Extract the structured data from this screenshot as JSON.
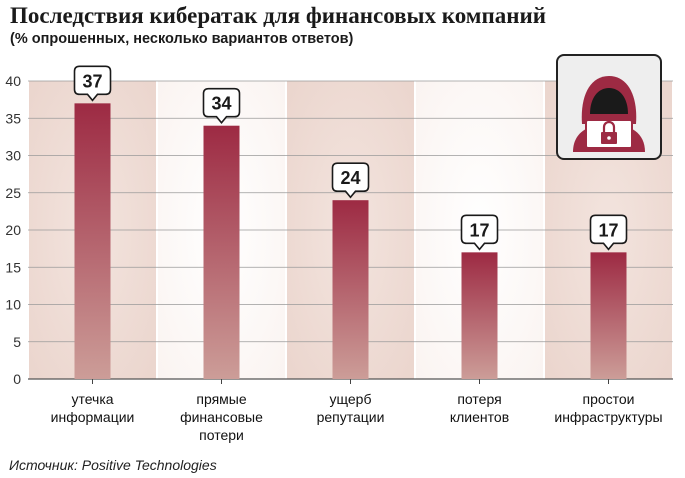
{
  "title": "Последствия кибератак для финансовых компаний",
  "subtitle": "(% опрошенных, несколько вариантов ответов)",
  "source": "Источник: Positive Technologies",
  "icon": "hacker-icon",
  "colors": {
    "bar_top": "#9d2a43",
    "bar_bottom": "#cc9d98",
    "band_dark": "#ead4cc",
    "band_light": "#faf3f0",
    "grid": "#9a9a9a"
  },
  "chart_data": {
    "type": "bar",
    "title": "Последствия кибератак для финансовых компаний",
    "subtitle": "(% опрошенных, несколько вариантов ответов)",
    "categories": [
      [
        "утечка",
        "информации"
      ],
      [
        "прямые",
        "финансовые",
        "потери"
      ],
      [
        "ущерб",
        "репутации"
      ],
      [
        "потеря",
        "клиентов"
      ],
      [
        "простои",
        "инфраструктуры"
      ]
    ],
    "values": [
      37,
      34,
      24,
      17,
      17
    ],
    "yticks": [
      0,
      5,
      10,
      15,
      20,
      25,
      30,
      35,
      40
    ],
    "ylim": [
      0,
      40
    ],
    "grid": true,
    "data_labels": true
  }
}
